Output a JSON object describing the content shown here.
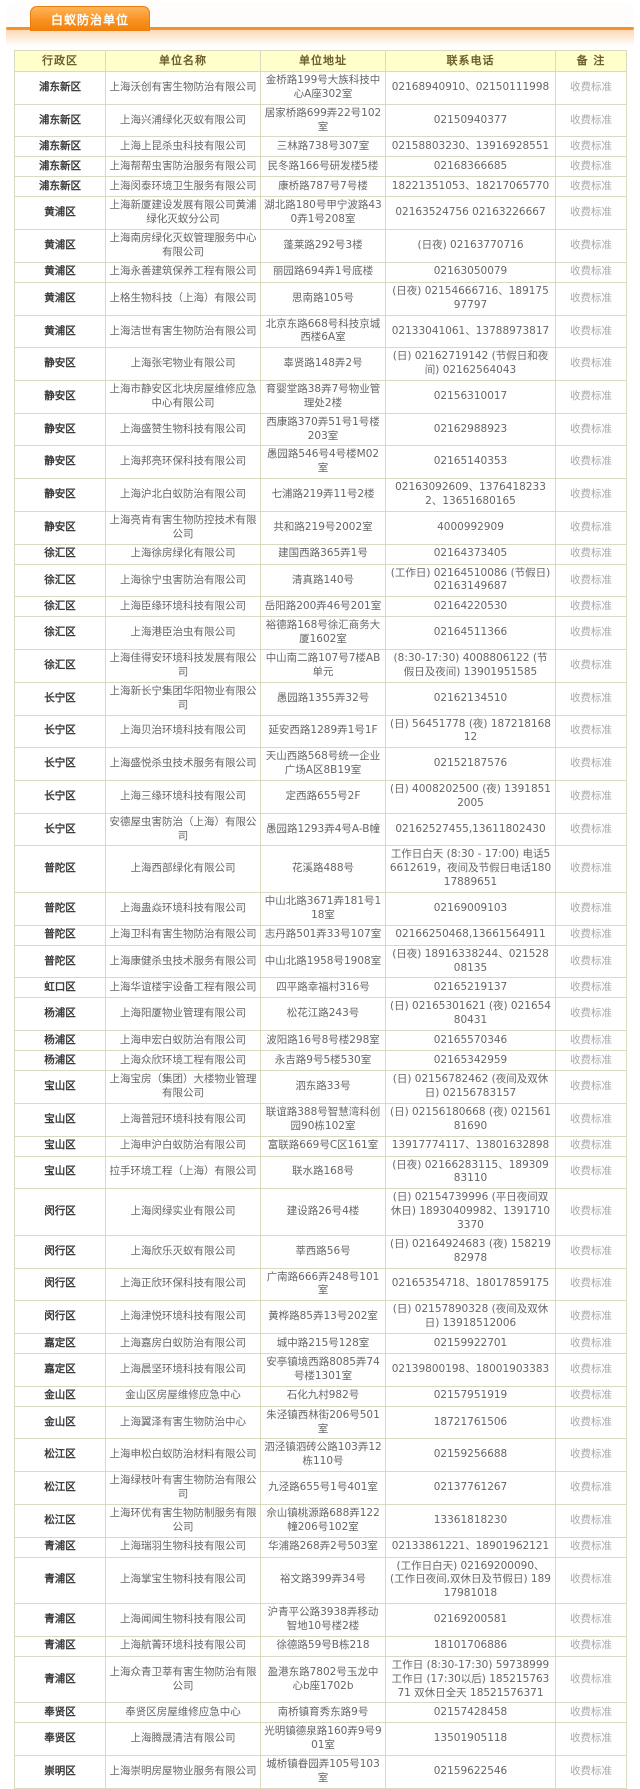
{
  "banner": {
    "tab_label": "白蚁防治单位"
  },
  "table": {
    "headers": [
      "行政区",
      "单位名称",
      "单位地址",
      "联系电话",
      "备 注"
    ],
    "note_label": "收费标准",
    "rows": [
      [
        "浦东新区",
        "上海沃创有害生物防治有限公司",
        "金桥路199号大族科技中心A座302室",
        "02168940910、02150111998",
        "收费标准"
      ],
      [
        "浦东新区",
        "上海兴浦绿化灭蚁有限公司",
        "居家桥路699弄22号102室",
        "02150940377",
        "收费标准"
      ],
      [
        "浦东新区",
        "上海上昆杀虫科技有限公司",
        "三林路738号307室",
        "02158803230、13916928551",
        "收费标准"
      ],
      [
        "浦东新区",
        "上海帮帮虫害防治服务有限公司",
        "民冬路166号研发楼5楼",
        "02168366685",
        "收费标准"
      ],
      [
        "浦东新区",
        "上海闵泰环境卫生服务有限公司",
        "康桥路787号7号楼",
        "18221351053、18217065770",
        "收费标准"
      ],
      [
        "黄浦区",
        "上海新厦建设发展有限公司黄浦绿化灭蚁分公司",
        "湖北路180号甲宁波路430弄1号208室",
        "02163524756 02163226667",
        "收费标准"
      ],
      [
        "黄浦区",
        "上海南房绿化灭蚁管理服务中心有限公司",
        "蓬莱路292号3楼",
        "(日夜) 02163770716",
        "收费标准"
      ],
      [
        "黄浦区",
        "上海永善建筑保养工程有限公司",
        "丽园路694弄1号底楼",
        "02163050079",
        "收费标准"
      ],
      [
        "黄浦区",
        "上格生物科技（上海）有限公司",
        "思南路105号",
        "(日夜) 02154666716、18917597797",
        "收费标准"
      ],
      [
        "黄浦区",
        "上海洁世有害生物防治有限公司",
        "北京东路668号科技京城西楼6A室",
        "02133041061、13788973817",
        "收费标准"
      ],
      [
        "静安区",
        "上海张宅物业有限公司",
        "辜贤路148弄2号",
        "(日) 02162719142 (节假日和夜间) 02162564043",
        "收费标准"
      ],
      [
        "静安区",
        "上海市静安区北块房屋维修应急中心有限公司",
        "育婴堂路38弄7号物业管理处2楼",
        "02156310017",
        "收费标准"
      ],
      [
        "静安区",
        "上海盛赞生物科技有限公司",
        "西康路370弄51号1号楼203室",
        "02162988923",
        "收费标准"
      ],
      [
        "静安区",
        "上海邦亮环保科技有限公司",
        "愚园路546号4号楼M02室",
        "02165140353",
        "收费标准"
      ],
      [
        "静安区",
        "上海沪北白蚁防治有限公司",
        "七浦路219弄11号2楼",
        "02163092609、13764182332、13651680165",
        "收费标准"
      ],
      [
        "静安区",
        "上海亮肯有害生物防控技术有限公司",
        "共和路219号2002室",
        "4000992909",
        "收费标准"
      ],
      [
        "徐汇区",
        "上海徐房绿化有限公司",
        "建国西路365弄1号",
        "02164373405",
        "收费标准"
      ],
      [
        "徐汇区",
        "上海徐宁虫害防治有限公司",
        "清真路140号",
        "(工作日) 02164510086 (节假日) 02163149687",
        "收费标准"
      ],
      [
        "徐汇区",
        "上海臣缘环境科技有限公司",
        "岳阳路200弄46号201室",
        "02164220530",
        "收费标准"
      ],
      [
        "徐汇区",
        "上海港臣治虫有限公司",
        "裕德路168号徐汇商务大厦1602室",
        "02164511366",
        "收费标准"
      ],
      [
        "徐汇区",
        "上海佳得安环境科技发展有限公司",
        "中山南二路107号7楼AB单元",
        "(8:30-17:30) 4008806122 (节假日及夜间) 13901951585",
        "收费标准"
      ],
      [
        "长宁区",
        "上海新长宁集团华阳物业有限公司",
        "愚园路1355弄32号",
        "02162134510",
        "收费标准"
      ],
      [
        "长宁区",
        "上海贝治环境科技有限公司",
        "延安西路1289弄1号1F",
        "(日) 56451778 (夜) 18721816812",
        "收费标准"
      ],
      [
        "长宁区",
        "上海盛悦杀虫技术服务有限公司",
        "天山西路568号统一企业广场A区8B19室",
        "02152187576",
        "收费标准"
      ],
      [
        "长宁区",
        "上海三缘环境科技有限公司",
        "定西路655号2F",
        "(日) 4008202500 (夜) 13918512005",
        "收费标准"
      ],
      [
        "长宁区",
        "安德屋虫害防治（上海）有限公司",
        "愚园路1293弄4号A-B幢",
        "02162527455,13611802430",
        "收费标准"
      ],
      [
        "普陀区",
        "上海西部绿化有限公司",
        "花溪路488号",
        "工作日白天 (8:30 - 17:00) 电话56612619，夜间及节假日电话18017889651",
        "收费标准"
      ],
      [
        "普陀区",
        "上海蛊焱环境科技有限公司",
        "中山北路3671弄181号118室",
        "02169009103",
        "收费标准"
      ],
      [
        "普陀区",
        "上海卫科有害生物防治有限公司",
        "志丹路501弄33号107室",
        "02166250468,13661564911",
        "收费标准"
      ],
      [
        "普陀区",
        "上海康健杀虫技术服务有限公司",
        "中山北路1958号1908室",
        "(日夜) 18916338244、02152808135",
        "收费标准"
      ],
      [
        "虹口区",
        "上海华谊楼宇设备工程有限公司",
        "四平路幸福村316号",
        "02165219137",
        "收费标准"
      ],
      [
        "杨浦区",
        "上海阳厦物业管理有限公司",
        "松花江路243号",
        "(日) 02165301621 (夜) 02165480431",
        "收费标准"
      ],
      [
        "杨浦区",
        "上海申宏白蚁防治有限公司",
        "波阳路16号8号楼298室",
        "02165570346",
        "收费标准"
      ],
      [
        "杨浦区",
        "上海众欣环境工程有限公司",
        "永吉路9号5楼530室",
        "02165342959",
        "收费标准"
      ],
      [
        "宝山区",
        "上海宝房（集团）大楼物业管理有限公司",
        "泗东路33号",
        "(日) 02156782462 (夜间及双休日) 02156783157",
        "收费标准"
      ],
      [
        "宝山区",
        "上海普冠环境科技有限公司",
        "联谊路388号智慧湾科创园90栋102室",
        "(日) 02156180668 (夜) 02156181690",
        "收费标准"
      ],
      [
        "宝山区",
        "上海申沪白蚁防治有限公司",
        "富联路669号C区161室",
        "13917774117、13801632898",
        "收费标准"
      ],
      [
        "宝山区",
        "拉手环境工程（上海）有限公司",
        "联水路168号",
        "(日夜) 02166283115、18930983110",
        "收费标准"
      ],
      [
        "闵行区",
        "上海闵绿实业有限公司",
        "建设路26号4楼",
        "(日) 02154739996 (平日夜间双休日) 18930409982、13917103370",
        "收费标准"
      ],
      [
        "闵行区",
        "上海欣乐灭蚁有限公司",
        "莘西路56号",
        "(日) 02164924683 (夜) 15821982978",
        "收费标准"
      ],
      [
        "闵行区",
        "上海正欣环保科技有限公司",
        "广南路666弄248号101室",
        "02165354718、18017859175",
        "收费标准"
      ],
      [
        "闵行区",
        "上海津悦环境科技有限公司",
        "黄桦路85弄13号202室",
        "(日) 02157890328 (夜间及双休日) 13918512006",
        "收费标准"
      ],
      [
        "嘉定区",
        "上海嘉房白蚁防治有限公司",
        "城中路215号128室",
        "02159922701",
        "收费标准"
      ],
      [
        "嘉定区",
        "上海晨坚环境科技有限公司",
        "安亭镇境西路8085弄74号楼1301室",
        "02139800198、18001903383",
        "收费标准"
      ],
      [
        "金山区",
        "金山区房屋维修应急中心",
        "石化九村982号",
        "02157951919",
        "收费标准"
      ],
      [
        "金山区",
        "上海翼泽有害生物防治中心",
        "朱泾镇西林街206号501室",
        "18721761506",
        "收费标准"
      ],
      [
        "松江区",
        "上海申松白蚁防治材料有限公司",
        "泗泾镇泗砖公路103弄12栋110号",
        "02159256688",
        "收费标准"
      ],
      [
        "松江区",
        "上海绿枝叶有害生物防治有限公司",
        "九泾路655号1号401室",
        "02137761267",
        "收费标准"
      ],
      [
        "松江区",
        "上海环优有害生物防制服务有限公司",
        "佘山镇桃源路688弄122幢206号102室",
        "13361818230",
        "收费标准"
      ],
      [
        "青浦区",
        "上海瑞羽生物科技有限公司",
        "华浦路268弄2号503室",
        "02133861221、18901962121",
        "收费标准"
      ],
      [
        "青浦区",
        "上海掌宝生物科技有限公司",
        "裕文路399弄34号",
        "(工作日白天) 02169200090、 (工作日夜间,双休日及节假日) 18917981018",
        "收费标准"
      ],
      [
        "青浦区",
        "上海闻闻生物科技有限公司",
        "沪青平公路3938弄移动智地10号楼2楼",
        "02169200581",
        "收费标准"
      ],
      [
        "青浦区",
        "上海航菁环境科技有限公司",
        "徐德路59号B栋218",
        "18101706886",
        "收费标准"
      ],
      [
        "青浦区",
        "上海众青卫莘有害生物防治有限公司",
        "盈港东路7802号玉龙中心b座1702b",
        "工作日 (8:30-17:30)  59738999 工作日 (17:30以后) 18521576371 双休日全天 18521576371",
        "收费标准"
      ],
      [
        "奉贤区",
        "奉贤区房屋维修应急中心",
        "南桥镇育秀东路9号",
        "02157428458",
        "收费标准"
      ],
      [
        "奉贤区",
        "上海腾晟清洁有限公司",
        "光明镇德泉路160弄9号901室",
        "13501905118",
        "收费标准"
      ],
      [
        "崇明区",
        "上海崇明房屋物业服务有限公司",
        "城桥镇眷园弄105号103室",
        "02159622546",
        "收费标准"
      ]
    ]
  }
}
